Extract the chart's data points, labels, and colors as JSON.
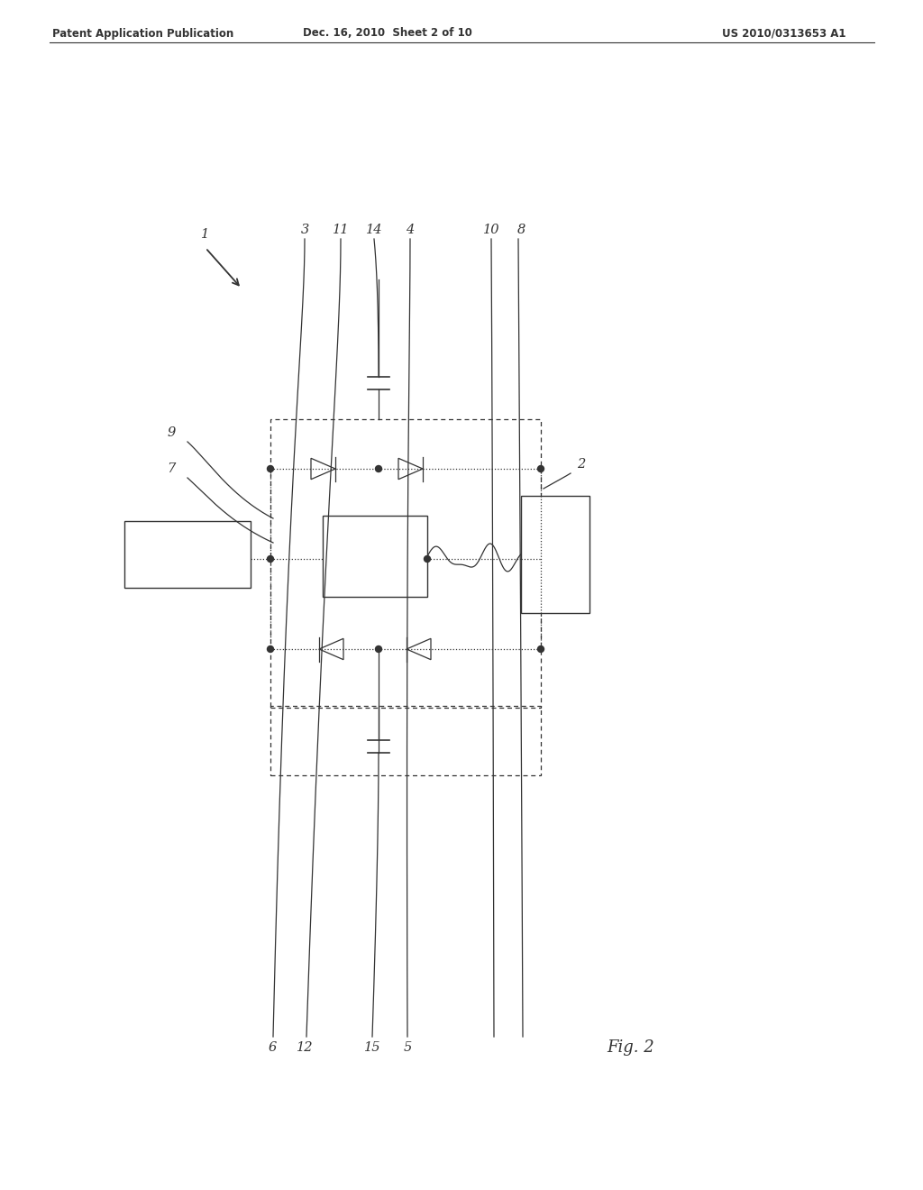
{
  "bg_color": "#ffffff",
  "header_left": "Patent Application Publication",
  "header_mid": "Dec. 16, 2010  Sheet 2 of 10",
  "header_right": "US 2010/0313653 A1",
  "fig_label": "Fig. 2",
  "header_fontsize": 8.5,
  "fig_fontsize": 13,
  "ref_fontsize": 10.5
}
